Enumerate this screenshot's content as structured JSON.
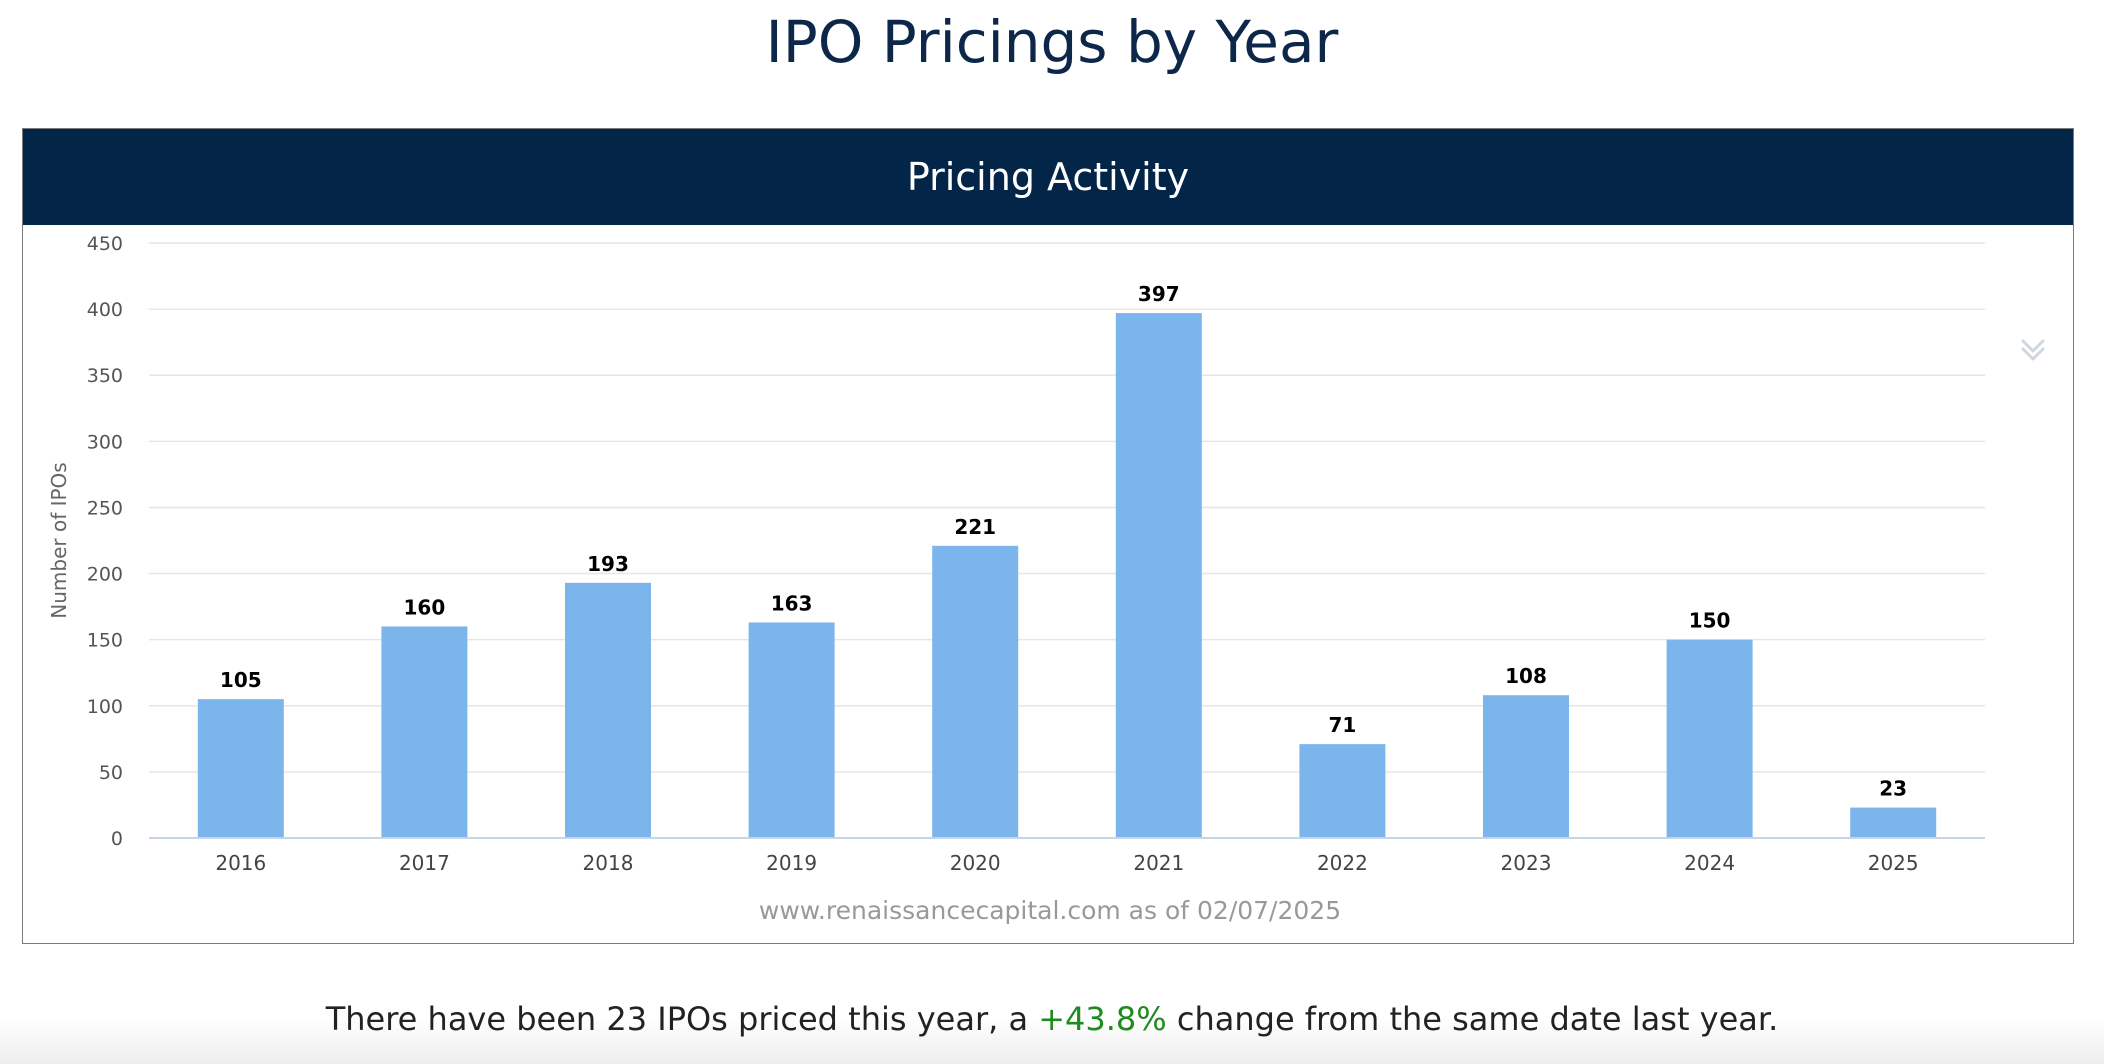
{
  "page": {
    "title": "IPO Pricings by Year"
  },
  "panel": {
    "title": "Pricing Activity",
    "menu_icon": "double-chevron-down-icon"
  },
  "footer": {
    "prefix": "There have been 23 IPOs priced this year, a ",
    "change": "+43.8%",
    "suffix": " change from the same date last year.",
    "change_color": "#1f8a1f"
  },
  "chart_data": {
    "type": "bar",
    "categories": [
      "2016",
      "2017",
      "2018",
      "2019",
      "2020",
      "2021",
      "2022",
      "2023",
      "2024",
      "2025"
    ],
    "values": [
      105,
      160,
      193,
      163,
      221,
      397,
      71,
      108,
      150,
      23
    ],
    "ylabel": "Number of IPOs",
    "xlabel": "",
    "ylim": [
      0,
      450
    ],
    "yticks": [
      0,
      50,
      100,
      150,
      200,
      250,
      300,
      350,
      400,
      450
    ],
    "credits": "www.renaissancecapital.com as of 02/07/2025",
    "bar_color": "#7cb5ec",
    "grid": true,
    "data_labels": true
  }
}
